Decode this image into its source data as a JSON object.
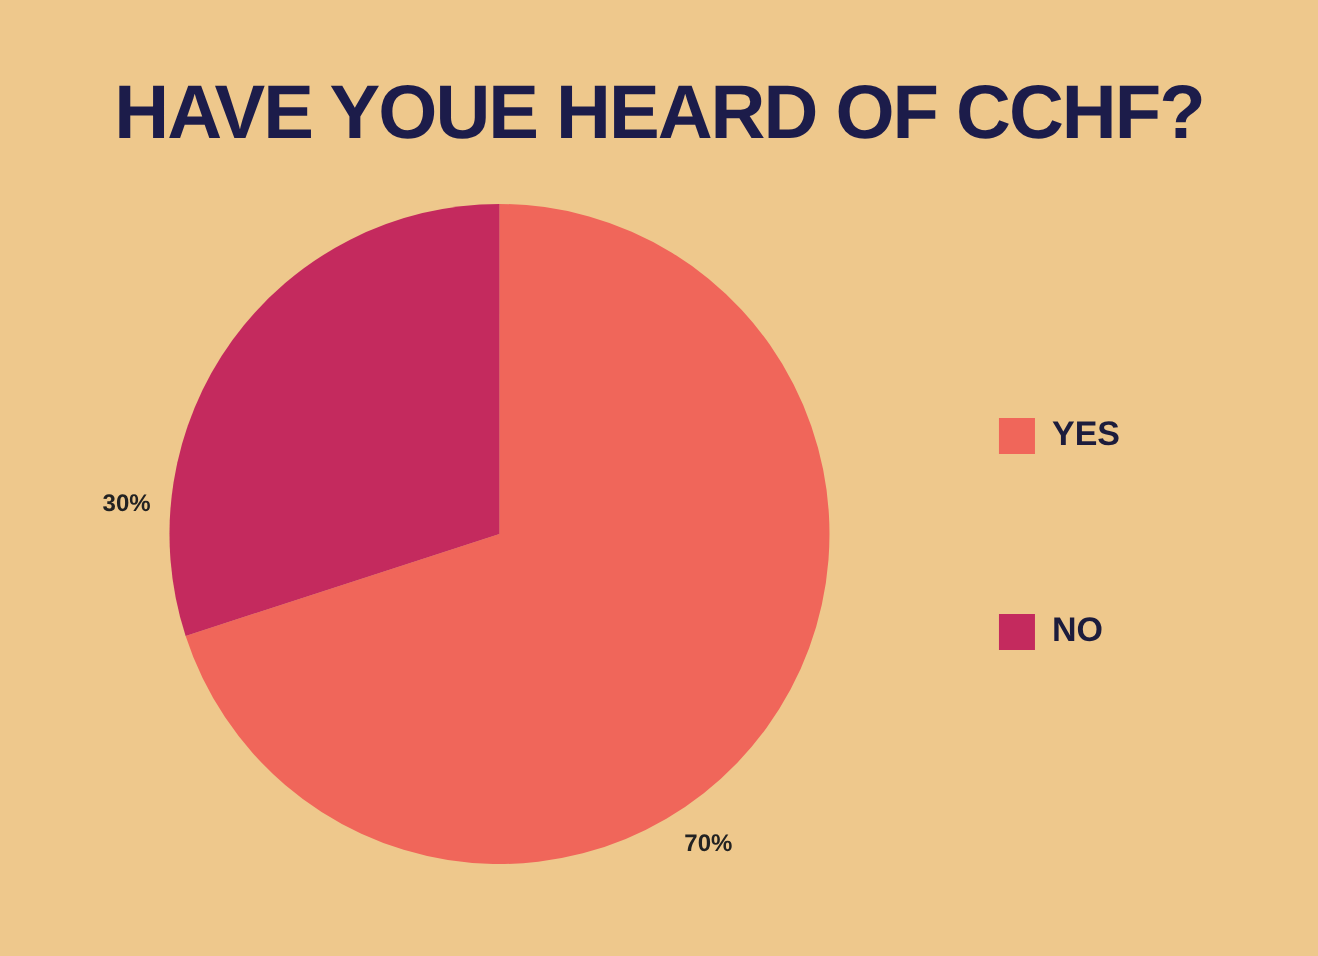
{
  "chart_data": {
    "type": "pie",
    "title": "HAVE YOUE HEARD OF CCHF?",
    "categories": [
      "YES",
      "NO"
    ],
    "values": [
      70,
      30
    ],
    "value_labels": [
      "70%",
      "30%"
    ],
    "colors": [
      "#f0665a",
      "#c42a5e"
    ],
    "legend": "right"
  }
}
